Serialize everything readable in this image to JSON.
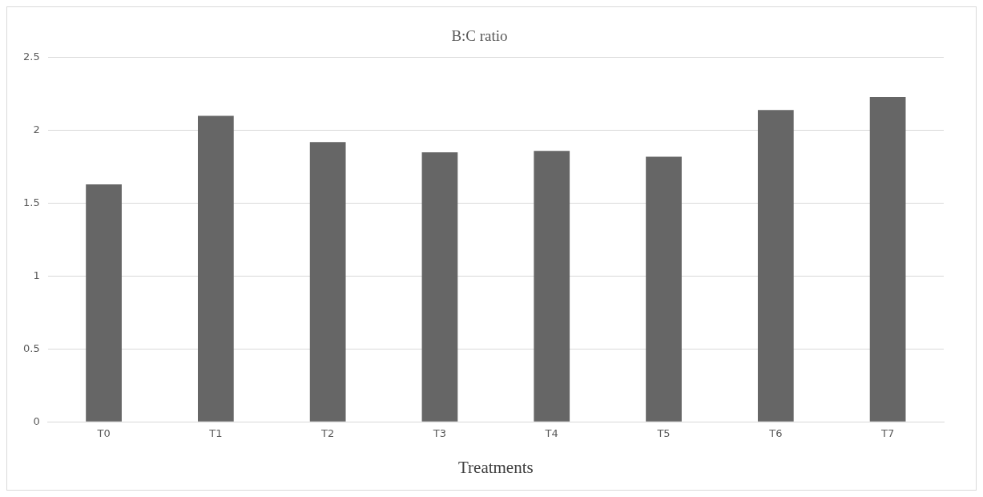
{
  "chart_data": {
    "type": "bar",
    "title": "B:C ratio",
    "xlabel": "Treatments",
    "categories": [
      "T0",
      "T1",
      "T2",
      "T3",
      "T4",
      "T5",
      "T6",
      "T7"
    ],
    "values": [
      1.63,
      2.1,
      1.92,
      1.85,
      1.86,
      1.82,
      2.14,
      2.23
    ],
    "color": "#666666",
    "ylim": [
      0,
      2.5
    ],
    "yticks": [
      0,
      0.5,
      1,
      1.5,
      2,
      2.5
    ],
    "grid": "y",
    "legend": false
  }
}
